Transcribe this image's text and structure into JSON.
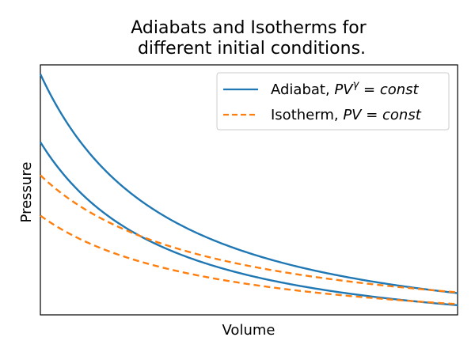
{
  "chart_data": {
    "type": "line",
    "title": "Adiabats and Isotherms for\ndifferent initial conditions.",
    "title_lines": [
      "Adiabats and Isotherms for",
      "different initial conditions."
    ],
    "xlabel": "Volume",
    "ylabel": "Pressure",
    "xlim": [
      1,
      3.43
    ],
    "ylim": [
      0.14,
      1.5
    ],
    "grid": false,
    "legend": {
      "position": "top-right",
      "entries": [
        {
          "name": "Adiabat, PV^γ = const",
          "label_prefix": "Adiabat, ",
          "label_math": "PV",
          "label_sup": "γ",
          "label_suffix": " = const",
          "series_style": "adiabat"
        },
        {
          "name": "Isotherm, PV = const",
          "label_prefix": "Isotherm, ",
          "label_math": "PV",
          "label_sup": "",
          "label_suffix": " = const",
          "series_style": "isotherm"
        }
      ]
    },
    "colors": {
      "adiabat": "#1f77b4",
      "isotherm": "#ff7f0e"
    },
    "series": [
      {
        "name": "Adiabat, PV^γ = const",
        "kind": "adiabat",
        "gamma": 1.4,
        "P0": 1.45,
        "x": [
          1.0,
          1.2,
          1.4,
          1.6,
          1.8,
          2.0,
          2.2,
          2.4,
          2.6,
          2.8,
          3.0,
          3.2,
          3.43
        ],
        "y": [
          1.45,
          1.12,
          0.906,
          0.752,
          0.637,
          0.55,
          0.481,
          0.424,
          0.378,
          0.34,
          0.307,
          0.279,
          0.25
        ]
      },
      {
        "name": "Adiabat, PV^γ = const",
        "kind": "adiabat",
        "gamma": 1.4,
        "P0": 1.08,
        "x": [
          1.0,
          1.2,
          1.4,
          1.6,
          1.8,
          2.0,
          2.2,
          2.4,
          2.6,
          2.8,
          3.0,
          3.2,
          3.43
        ],
        "y": [
          1.08,
          0.835,
          0.675,
          0.56,
          0.474,
          0.41,
          0.358,
          0.316,
          0.282,
          0.253,
          0.229,
          0.208,
          0.187
        ]
      },
      {
        "name": "Isotherm, PV = const",
        "kind": "isotherm",
        "P0": 0.9,
        "x": [
          1.0,
          1.2,
          1.4,
          1.6,
          1.8,
          2.0,
          2.2,
          2.4,
          2.6,
          2.8,
          3.0,
          3.2,
          3.43
        ],
        "y": [
          0.9,
          0.75,
          0.643,
          0.563,
          0.5,
          0.45,
          0.409,
          0.375,
          0.346,
          0.321,
          0.3,
          0.281,
          0.262
        ]
      },
      {
        "name": "Isotherm, PV = const",
        "kind": "isotherm",
        "P0": 0.68,
        "x": [
          1.0,
          1.2,
          1.4,
          1.6,
          1.8,
          2.0,
          2.2,
          2.4,
          2.6,
          2.8,
          3.0,
          3.2,
          3.43
        ],
        "y": [
          0.68,
          0.567,
          0.486,
          0.425,
          0.378,
          0.34,
          0.309,
          0.283,
          0.262,
          0.243,
          0.227,
          0.213,
          0.198
        ]
      }
    ]
  }
}
